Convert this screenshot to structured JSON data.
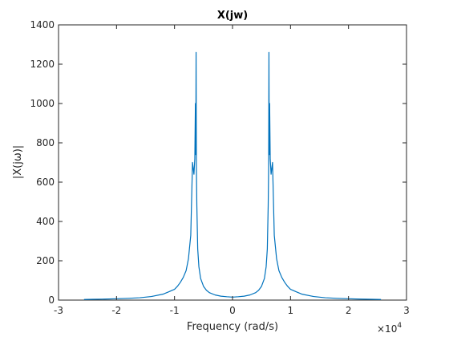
{
  "chart_data": {
    "type": "line",
    "title": "X(jw)",
    "xlabel": "Frequency (rad/s)",
    "ylabel": "|X(jω)|",
    "x_exponent_base": "×10",
    "x_exponent_power": "4",
    "xlim": [
      -3,
      3
    ],
    "ylim": [
      0,
      1400
    ],
    "x_ticks": [
      -3,
      -2,
      -1,
      0,
      1,
      2,
      3
    ],
    "x_tick_labels": [
      "-3",
      "-2",
      "-1",
      "0",
      "1",
      "2",
      "3"
    ],
    "y_ticks": [
      0,
      200,
      400,
      600,
      800,
      1000,
      1200,
      1400
    ],
    "y_tick_labels": [
      "0",
      "200",
      "400",
      "600",
      "800",
      "1000",
      "1200",
      "1400"
    ],
    "grid": false,
    "line_color": "#0072BD",
    "series": [
      {
        "x": [
          -2.56,
          -2.4,
          -2.2,
          -2.0,
          -1.8,
          -1.6,
          -1.4,
          -1.2,
          -1.1,
          -1.0,
          -0.95,
          -0.9,
          -0.85,
          -0.8,
          -0.76,
          -0.72,
          -0.69,
          -0.665,
          -0.65,
          -0.64,
          -0.633,
          -0.628,
          -0.623,
          -0.615,
          -0.6,
          -0.58,
          -0.55,
          -0.5,
          -0.45,
          -0.4,
          -0.3,
          -0.2,
          -0.1,
          0.0,
          0.1,
          0.2,
          0.3,
          0.4,
          0.45,
          0.5,
          0.55,
          0.58,
          0.6,
          0.615,
          0.623,
          0.628,
          0.633,
          0.64,
          0.65,
          0.665,
          0.69,
          0.72,
          0.76,
          0.8,
          0.85,
          0.9,
          0.95,
          1.0,
          1.1,
          1.2,
          1.4,
          1.6,
          1.8,
          2.0,
          2.2,
          2.4,
          2.56
        ],
        "y": [
          3,
          4,
          5,
          7,
          9,
          12,
          18,
          30,
          42,
          55,
          70,
          90,
          115,
          150,
          210,
          330,
          700,
          640,
          720,
          1000,
          740,
          1260,
          680,
          480,
          260,
          170,
          110,
          70,
          50,
          38,
          26,
          20,
          17,
          15,
          17,
          20,
          26,
          38,
          50,
          70,
          110,
          170,
          260,
          480,
          680,
          1260,
          740,
          1000,
          720,
          640,
          700,
          330,
          210,
          150,
          115,
          90,
          70,
          55,
          42,
          30,
          18,
          12,
          9,
          7,
          5,
          4,
          3
        ]
      }
    ]
  }
}
